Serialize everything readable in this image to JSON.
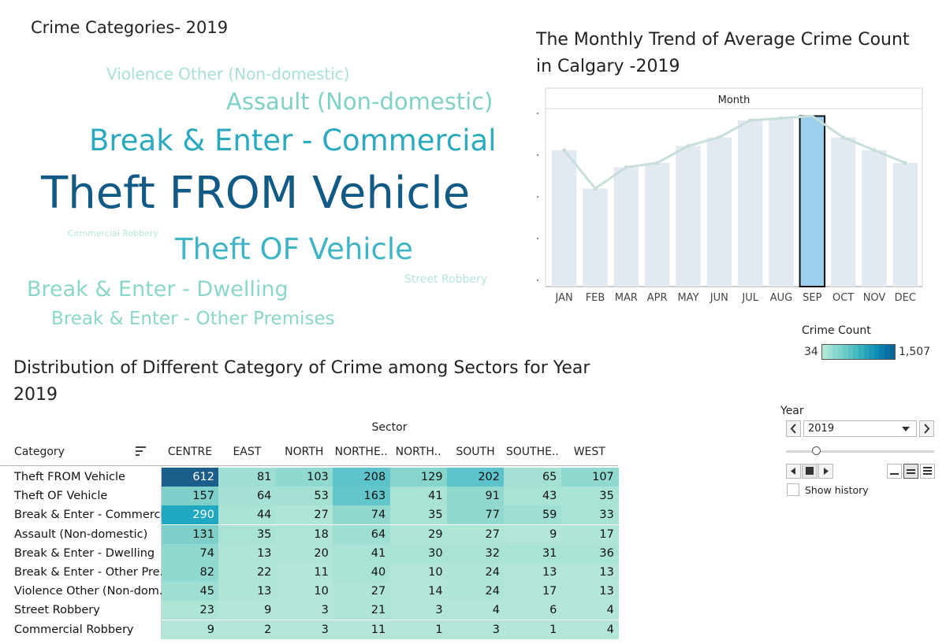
{
  "wordcloud": {
    "title": "Crime Categories- 2019",
    "words": [
      {
        "text": "Violence Other (Non-domestic)",
        "color": "#a8e0d6"
      },
      {
        "text": "Assault (Non-domestic)",
        "color": "#7fd1c6"
      },
      {
        "text": "Break & Enter - Commercial",
        "color": "#2aa9bf"
      },
      {
        "text": "Theft FROM Vehicle",
        "color": "#125a86"
      },
      {
        "text": "Commercial Robbery",
        "color": "#b4e6de"
      },
      {
        "text": "Theft OF Vehicle",
        "color": "#3fb4c4"
      },
      {
        "text": "Street Robbery",
        "color": "#b4e6de"
      },
      {
        "text": "Break & Enter - Dwelling",
        "color": "#8ad6ca"
      },
      {
        "text": "Break & Enter - Other Premises",
        "color": "#8ad6ca"
      }
    ]
  },
  "trend": {
    "title_line1": "The Monthly Trend of Average Crime Count",
    "title_line2": "in Calgary -2019",
    "chart_data": {
      "type": "bar",
      "header": "Month",
      "categories": [
        "JAN",
        "FEB",
        "MAR",
        "APR",
        "MAY",
        "JUN",
        "JUL",
        "AUG",
        "SEP",
        "OCT",
        "NOV",
        "DEC"
      ],
      "values": [
        3.2,
        2.3,
        2.8,
        2.9,
        3.3,
        3.5,
        3.9,
        3.95,
        4.0,
        3.5,
        3.2,
        2.9
      ],
      "highlight": "SEP",
      "ylim": [
        0,
        4.1
      ],
      "bar_color": "#e3e9f1",
      "highlight_color": "#9bcfec",
      "line_color": "#c7dedb"
    }
  },
  "legend": {
    "title": "Crime Count",
    "min_label": "34",
    "max_label": "1,507",
    "colors": [
      "#aee6d6",
      "#9ee0d4",
      "#8dd9d0",
      "#7cd2cb",
      "#6acac7",
      "#58c2c3",
      "#47b9c0",
      "#36afbd",
      "#27a4bb",
      "#1a98b8",
      "#108bb3",
      "#0a7eac",
      "#0870a2",
      "#086497"
    ]
  },
  "heatmap": {
    "title_line1": "Distribution of Different Category of Crime among Sectors for Year",
    "title_line2": "2019",
    "chart_data": {
      "type": "heatmap",
      "column_header": "Sector",
      "row_header": "Category",
      "columns": [
        "CENTRE",
        "EAST",
        "NORTH",
        "NORTHE..",
        "NORTH..",
        "SOUTH",
        "SOUTHE..",
        "WEST"
      ],
      "rows": [
        "Theft FROM Vehicle",
        "Theft OF Vehicle",
        "Break & Enter - Commercial",
        "Assault (Non-domestic)",
        "Break & Enter - Dwelling",
        "Break & Enter - Other Pre..",
        "Violence Other (Non-dom..",
        "Street Robbery",
        "Commercial Robbery"
      ],
      "values": [
        [
          612,
          81,
          103,
          208,
          129,
          202,
          65,
          107
        ],
        [
          157,
          64,
          53,
          163,
          41,
          91,
          43,
          35
        ],
        [
          290,
          44,
          27,
          74,
          35,
          77,
          59,
          33
        ],
        [
          131,
          35,
          18,
          64,
          29,
          27,
          9,
          17
        ],
        [
          74,
          13,
          20,
          41,
          30,
          32,
          31,
          36
        ],
        [
          82,
          22,
          11,
          40,
          10,
          24,
          13,
          13
        ],
        [
          45,
          13,
          10,
          27,
          14,
          24,
          17,
          13
        ],
        [
          23,
          9,
          3,
          21,
          3,
          4,
          6,
          4
        ],
        [
          9,
          2,
          3,
          11,
          1,
          3,
          1,
          4
        ]
      ],
      "cell_colors": [
        [
          "#1b5e8c",
          "#9fdfd3",
          "#8fd9d0",
          "#5ec4cb",
          "#86d5cd",
          "#5ec4cb",
          "#a4e0d3",
          "#8fd9d0"
        ],
        [
          "#7ecfc9",
          "#a4e0d3",
          "#a4e0d3",
          "#62c6cb",
          "#a8e3d5",
          "#91d9cf",
          "#a8e3d5",
          "#a8e3d5"
        ],
        [
          "#1fa8c0",
          "#a8e3d5",
          "#aee5d7",
          "#91d9cf",
          "#a8e3d5",
          "#91d9cf",
          "#9fdfd3",
          "#a8e3d5"
        ],
        [
          "#7ecfc9",
          "#a8e3d5",
          "#aee5d7",
          "#9fdfd3",
          "#aee5d7",
          "#aee5d7",
          "#b3e6d9",
          "#aee5d7"
        ],
        [
          "#91d9cf",
          "#aee5d7",
          "#aee5d7",
          "#a8e3d5",
          "#a8e3d5",
          "#a8e3d5",
          "#a8e3d5",
          "#a8e3d5"
        ],
        [
          "#8fd9d0",
          "#aee5d7",
          "#b3e6d9",
          "#a8e3d5",
          "#b3e6d9",
          "#aee5d7",
          "#b3e6d9",
          "#b3e6d9"
        ],
        [
          "#9fdfd3",
          "#aee5d7",
          "#b3e6d9",
          "#aee5d7",
          "#b3e6d9",
          "#aee5d7",
          "#b3e6d9",
          "#b3e6d9"
        ],
        [
          "#aee5d7",
          "#b3e6d9",
          "#b3e6d9",
          "#aee5d7",
          "#b3e6d9",
          "#b3e6d9",
          "#b3e6d9",
          "#b3e6d9"
        ],
        [
          "#b3e6d9",
          "#b3e6d9",
          "#b3e6d9",
          "#b3e6d9",
          "#b3e6d9",
          "#b3e6d9",
          "#b3e6d9",
          "#b3e6d9"
        ]
      ],
      "sort_icon": "sort-descending-icon"
    }
  },
  "year_control": {
    "label": "Year",
    "selected": "2019",
    "prev_icon": "chevron-left-icon",
    "next_icon": "chevron-right-icon",
    "dropdown_icon": "caret-down-icon",
    "slider_value": 0.3,
    "show_history_label": "Show history",
    "show_history_checked": false
  }
}
